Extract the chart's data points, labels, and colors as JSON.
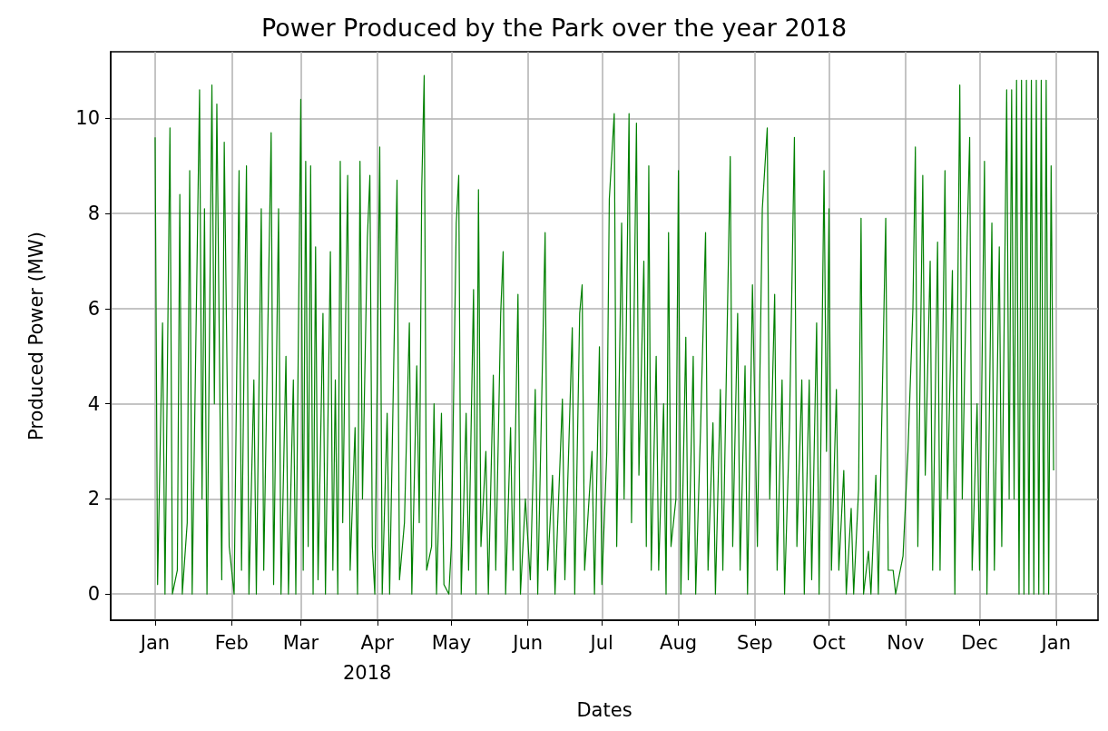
{
  "chart_data": {
    "type": "line",
    "title": "Power Produced by the Park over the year 2018",
    "xlabel": "Dates",
    "ylabel": "Produced Power (MW)",
    "annotations": [
      "2018"
    ],
    "xlim": [
      "2017-12-14",
      "2019-01-18"
    ],
    "ylim": [
      -0.55,
      11.4
    ],
    "xticks": [
      {
        "value": "2018-01-01",
        "label": "Jan"
      },
      {
        "value": "2018-02-01",
        "label": "Feb"
      },
      {
        "value": "2018-03-01",
        "label": "Mar"
      },
      {
        "value": "2018-04-01",
        "label": "Apr"
      },
      {
        "value": "2018-05-01",
        "label": "May"
      },
      {
        "value": "2018-06-01",
        "label": "Jun"
      },
      {
        "value": "2018-07-01",
        "label": "Jul"
      },
      {
        "value": "2018-08-01",
        "label": "Aug"
      },
      {
        "value": "2018-09-01",
        "label": "Sep"
      },
      {
        "value": "2018-10-01",
        "label": "Oct"
      },
      {
        "value": "2018-11-01",
        "label": "Nov"
      },
      {
        "value": "2018-12-01",
        "label": "Dec"
      },
      {
        "value": "2019-01-01",
        "label": "Jan"
      }
    ],
    "yticks": [
      0,
      2,
      4,
      6,
      8,
      10
    ],
    "grid": true,
    "series": [
      {
        "color": "#008000",
        "x": [
          "2018-01-01",
          "2018-01-02",
          "2018-01-04",
          "2018-01-05",
          "2018-01-07",
          "2018-01-08",
          "2018-01-10",
          "2018-01-11",
          "2018-01-12",
          "2018-01-14",
          "2018-01-15",
          "2018-01-16",
          "2018-01-19",
          "2018-01-20",
          "2018-01-21",
          "2018-01-22",
          "2018-01-24",
          "2018-01-25",
          "2018-01-26",
          "2018-01-28",
          "2018-01-29",
          "2018-01-31",
          "2018-02-02",
          "2018-02-04",
          "2018-02-05",
          "2018-02-07",
          "2018-02-08",
          "2018-02-10",
          "2018-02-11",
          "2018-02-13",
          "2018-02-14",
          "2018-02-17",
          "2018-02-18",
          "2018-02-20",
          "2018-02-21",
          "2018-02-23",
          "2018-02-24",
          "2018-02-26",
          "2018-02-27",
          "2018-03-01",
          "2018-03-02",
          "2018-03-03",
          "2018-03-04",
          "2018-03-05",
          "2018-03-06",
          "2018-03-07",
          "2018-03-08",
          "2018-03-10",
          "2018-03-11",
          "2018-03-13",
          "2018-03-14",
          "2018-03-15",
          "2018-03-16",
          "2018-03-17",
          "2018-03-18",
          "2018-03-20",
          "2018-03-21",
          "2018-03-23",
          "2018-03-24",
          "2018-03-25",
          "2018-03-26",
          "2018-03-28",
          "2018-03-29",
          "2018-03-30",
          "2018-03-31",
          "2018-04-02",
          "2018-04-03",
          "2018-04-05",
          "2018-04-06",
          "2018-04-09",
          "2018-04-10",
          "2018-04-12",
          "2018-04-14",
          "2018-04-15",
          "2018-04-17",
          "2018-04-18",
          "2018-04-19",
          "2018-04-20",
          "2018-04-21",
          "2018-04-23",
          "2018-04-24",
          "2018-04-25",
          "2018-04-27",
          "2018-04-28",
          "2018-04-30",
          "2018-05-01",
          "2018-05-03",
          "2018-05-04",
          "2018-05-05",
          "2018-05-07",
          "2018-05-08",
          "2018-05-10",
          "2018-05-11",
          "2018-05-12",
          "2018-05-13",
          "2018-05-15",
          "2018-05-16",
          "2018-05-18",
          "2018-05-19",
          "2018-05-21",
          "2018-05-22",
          "2018-05-23",
          "2018-05-25",
          "2018-05-26",
          "2018-05-28",
          "2018-05-29",
          "2018-05-31",
          "2018-06-02",
          "2018-06-04",
          "2018-06-05",
          "2018-06-08",
          "2018-06-09",
          "2018-06-11",
          "2018-06-12",
          "2018-06-15",
          "2018-06-16",
          "2018-06-19",
          "2018-06-20",
          "2018-06-22",
          "2018-06-23",
          "2018-06-24",
          "2018-06-27",
          "2018-06-28",
          "2018-06-30",
          "2018-07-01",
          "2018-07-03",
          "2018-07-04",
          "2018-07-06",
          "2018-07-07",
          "2018-07-09",
          "2018-07-10",
          "2018-07-12",
          "2018-07-13",
          "2018-07-15",
          "2018-07-16",
          "2018-07-18",
          "2018-07-19",
          "2018-07-20",
          "2018-07-21",
          "2018-07-23",
          "2018-07-24",
          "2018-07-26",
          "2018-07-27",
          "2018-07-28",
          "2018-07-29",
          "2018-07-31",
          "2018-08-01",
          "2018-08-02",
          "2018-08-04",
          "2018-08-05",
          "2018-08-07",
          "2018-08-08",
          "2018-08-10",
          "2018-08-12",
          "2018-08-13",
          "2018-08-15",
          "2018-08-16",
          "2018-08-18",
          "2018-08-19",
          "2018-08-22",
          "2018-08-23",
          "2018-08-25",
          "2018-08-26",
          "2018-08-28",
          "2018-08-29",
          "2018-08-31",
          "2018-09-02",
          "2018-09-04",
          "2018-09-06",
          "2018-09-07",
          "2018-09-09",
          "2018-09-10",
          "2018-09-12",
          "2018-09-13",
          "2018-09-15",
          "2018-09-17",
          "2018-09-18",
          "2018-09-20",
          "2018-09-21",
          "2018-09-23",
          "2018-09-24",
          "2018-09-26",
          "2018-09-27",
          "2018-09-29",
          "2018-09-30",
          "2018-10-01",
          "2018-10-02",
          "2018-10-04",
          "2018-10-05",
          "2018-10-07",
          "2018-10-08",
          "2018-10-10",
          "2018-10-11",
          "2018-10-13",
          "2018-10-14",
          "2018-10-15",
          "2018-10-17",
          "2018-10-18",
          "2018-10-20",
          "2018-10-21",
          "2018-10-24",
          "2018-10-25",
          "2018-10-27",
          "2018-10-28",
          "2018-10-31",
          "2018-11-02",
          "2018-11-04",
          "2018-11-05",
          "2018-11-06",
          "2018-11-08",
          "2018-11-09",
          "2018-11-11",
          "2018-11-12",
          "2018-11-14",
          "2018-11-15",
          "2018-11-17",
          "2018-11-18",
          "2018-11-20",
          "2018-11-21",
          "2018-11-23",
          "2018-11-24",
          "2018-11-26",
          "2018-11-27",
          "2018-11-28",
          "2018-11-30",
          "2018-12-01",
          "2018-12-03",
          "2018-12-04",
          "2018-12-06",
          "2018-12-07",
          "2018-12-09",
          "2018-12-10",
          "2018-12-12",
          "2018-12-13",
          "2018-12-14",
          "2018-12-15",
          "2018-12-16",
          "2018-12-17",
          "2018-12-18",
          "2018-12-19",
          "2018-12-20",
          "2018-12-21",
          "2018-12-22",
          "2018-12-23",
          "2018-12-24",
          "2018-12-25",
          "2018-12-26",
          "2018-12-27",
          "2018-12-28",
          "2018-12-29",
          "2018-12-30",
          "2018-12-31"
        ],
        "values": [
          9.6,
          0.2,
          5.7,
          0,
          9.8,
          0,
          0.5,
          8.4,
          0,
          1.5,
          8.9,
          0,
          10.6,
          2.0,
          8.1,
          0,
          10.7,
          4,
          10.3,
          0.3,
          9.5,
          1,
          0,
          8.9,
          0.5,
          9.0,
          0,
          4.5,
          0,
          8.1,
          0.5,
          9.7,
          0.2,
          8.1,
          0,
          5,
          0,
          4.5,
          0,
          10.4,
          0.5,
          9.1,
          1,
          9.0,
          0,
          7.3,
          0.3,
          5.9,
          0,
          7.2,
          0.5,
          4.5,
          0,
          9.1,
          1.5,
          8.8,
          0.5,
          3.5,
          0,
          9.1,
          2,
          7.5,
          8.8,
          1,
          0,
          9.4,
          0,
          3.8,
          0,
          8.7,
          0.3,
          1.5,
          5.7,
          0,
          4.8,
          1.5,
          8.5,
          10.9,
          0.5,
          1,
          4.0,
          0,
          3.8,
          0.2,
          0,
          1,
          7.8,
          8.8,
          0,
          3.8,
          0.5,
          6.4,
          0,
          8.5,
          1,
          3,
          0,
          4.6,
          0.5,
          5.9,
          7.2,
          0,
          3.5,
          0.5,
          6.3,
          0,
          2,
          0.3,
          4.3,
          0,
          7.6,
          0.5,
          2.5,
          0,
          4.1,
          0.3,
          5.6,
          0,
          5.9,
          6.5,
          0.5,
          3.0,
          0,
          5.2,
          0.2,
          3.0,
          8.3,
          10.1,
          1,
          7.8,
          2,
          10.1,
          1.5,
          9.9,
          2.5,
          7,
          1,
          9.0,
          0.5,
          5,
          0.5,
          4,
          0,
          7.6,
          1,
          2,
          8.9,
          0,
          5.4,
          0.3,
          5.0,
          0,
          3.5,
          7.6,
          0.5,
          3.6,
          0,
          4.3,
          0.5,
          9.2,
          1,
          5.9,
          0.5,
          4.8,
          0,
          6.5,
          1,
          8.1,
          9.8,
          2,
          6.3,
          0.5,
          4.5,
          0,
          3.5,
          9.6,
          1,
          4.5,
          0,
          4.5,
          0.3,
          5.7,
          0,
          8.9,
          3,
          8.1,
          0.5,
          4.3,
          0.5,
          2.6,
          0,
          1.8,
          0,
          2.2,
          7.9,
          0,
          0.9,
          0,
          2.5,
          0,
          7.9,
          0.5,
          0.5,
          0,
          0.8,
          3,
          6.0,
          9.4,
          1,
          8.8,
          2.5,
          7.0,
          0.5,
          7.4,
          0.5,
          8.9,
          2,
          6.8,
          0,
          10.7,
          2,
          7.5,
          9.6,
          0.5,
          4,
          0.5,
          9.1,
          0,
          7.8,
          0.5,
          7.3,
          1,
          10.6,
          2,
          10.6,
          2,
          10.8,
          0,
          10.8,
          0,
          10.8,
          0,
          10.8,
          0,
          10.8,
          0,
          10.8,
          0,
          10.8,
          0,
          9.0,
          2.6
        ]
      }
    ]
  }
}
